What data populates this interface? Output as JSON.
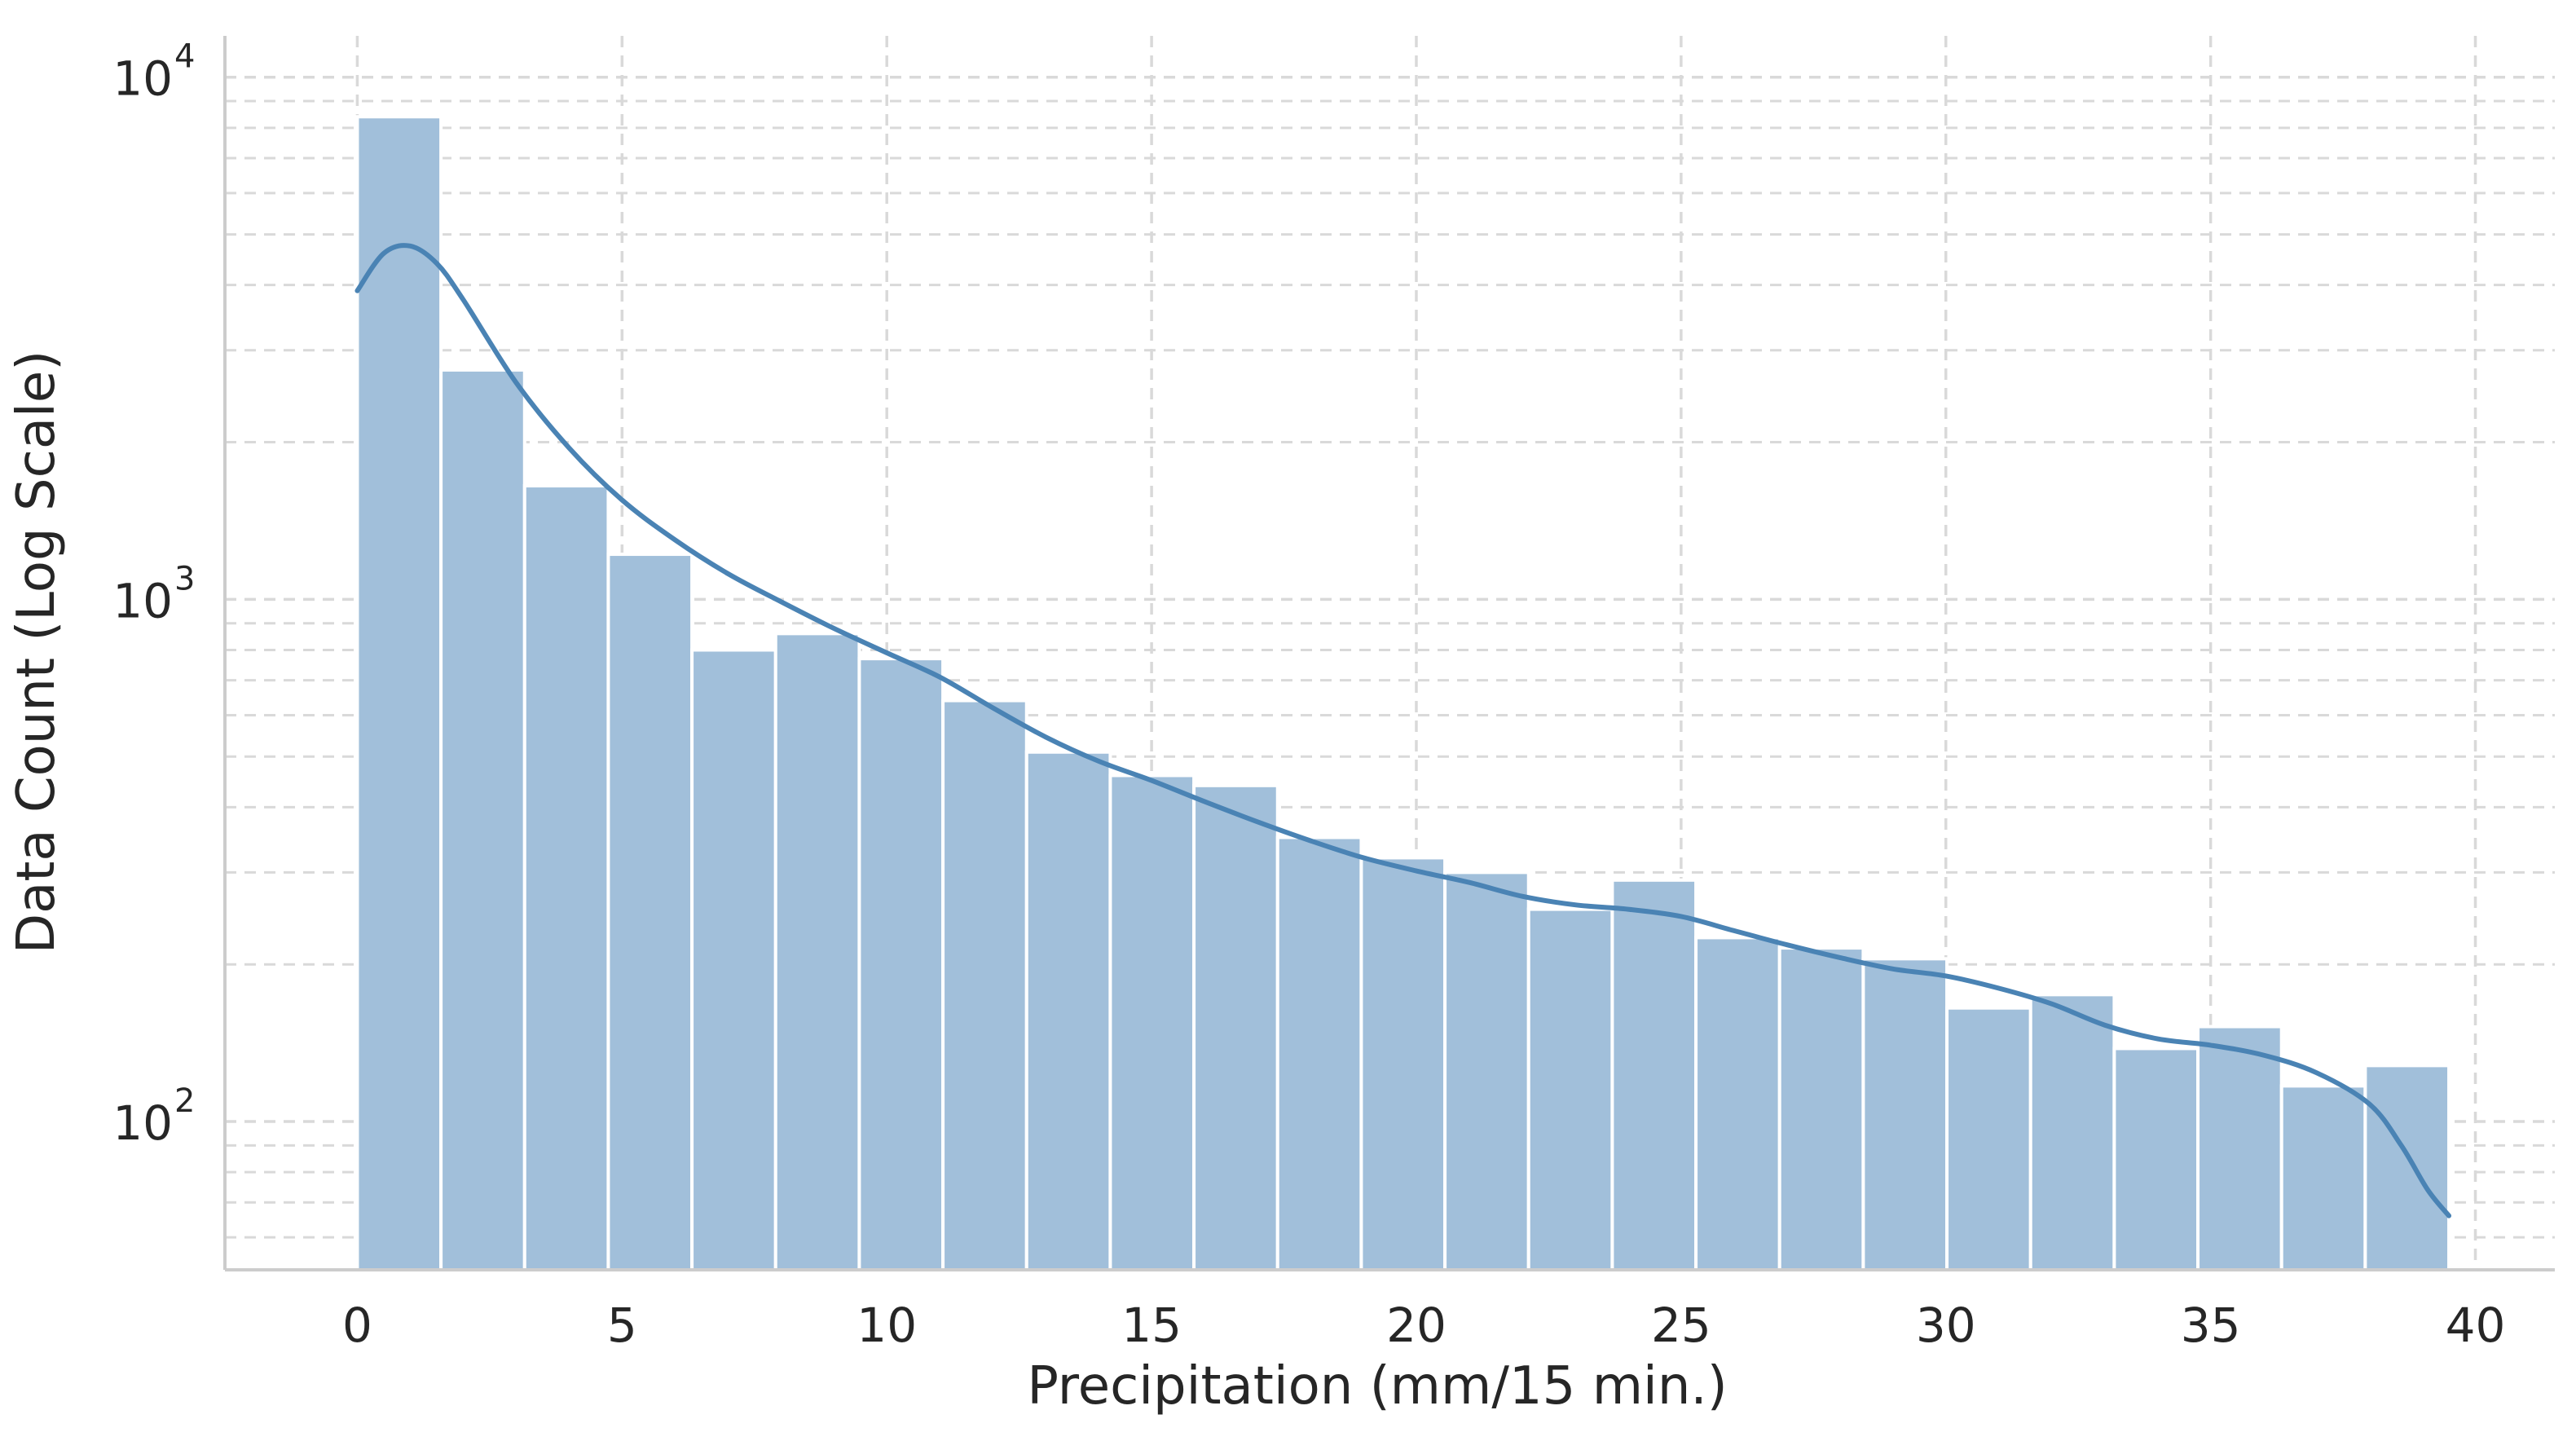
{
  "chart_data": {
    "type": "bar",
    "subtype": "histogram-with-kde",
    "xlabel": "Precipitation (mm/15 min.)",
    "ylabel": "Data Count (Log Scale)",
    "yscale": "log",
    "ylim": [
      52,
      12000
    ],
    "xlim": [
      -2.5,
      41.5
    ],
    "grid": true,
    "x_ticks": [
      0,
      5,
      10,
      15,
      20,
      25,
      30,
      35,
      40
    ],
    "x_tick_labels": [
      "0",
      "5",
      "10",
      "15",
      "20",
      "25",
      "30",
      "35",
      "40"
    ],
    "y_ticks": [
      {
        "value": 100,
        "base": "10",
        "exp": "2"
      },
      {
        "value": 1000,
        "base": "10",
        "exp": "3"
      },
      {
        "value": 10000,
        "base": "10",
        "exp": "4"
      }
    ],
    "bin_edges": [
      0.0,
      1.58,
      3.16,
      4.74,
      6.32,
      7.9,
      9.48,
      11.06,
      12.64,
      14.22,
      15.8,
      17.38,
      18.96,
      20.54,
      22.12,
      23.7,
      25.28,
      26.86,
      28.44,
      30.02,
      31.6,
      33.18,
      34.76,
      36.34,
      37.92,
      39.5
    ],
    "values": [
      8400,
      2750,
      1650,
      1220,
      800,
      860,
      770,
      640,
      510,
      460,
      440,
      350,
      320,
      300,
      255,
      290,
      225,
      215,
      205,
      165,
      175,
      138,
      152,
      117,
      128
    ],
    "kde": {
      "x": [
        0,
        0.5,
        1,
        1.5,
        2,
        3,
        4,
        5,
        6,
        7,
        8,
        9,
        10,
        11,
        12,
        13,
        14,
        15,
        16,
        17,
        18,
        19,
        20,
        21,
        22,
        23,
        24,
        25,
        26,
        27,
        28,
        29,
        30,
        31,
        32,
        33,
        34,
        35,
        36,
        37,
        38,
        38.6,
        39.1,
        39.5
      ],
      "y": [
        3900,
        4600,
        4750,
        4400,
        3750,
        2600,
        1950,
        1550,
        1300,
        1120,
        990,
        880,
        790,
        710,
        620,
        545,
        490,
        450,
        410,
        375,
        345,
        320,
        302,
        287,
        270,
        260,
        255,
        247,
        232,
        218,
        206,
        196,
        190,
        180,
        168,
        153,
        144,
        140,
        134,
        124,
        108,
        90,
        74,
        66
      ]
    },
    "colors": {
      "bar_fill": "#a1bfda",
      "bar_edge": "#ffffff",
      "kde_line": "#4a83b4",
      "grid": "#d9d9d9",
      "axis": "#cccccc"
    }
  }
}
